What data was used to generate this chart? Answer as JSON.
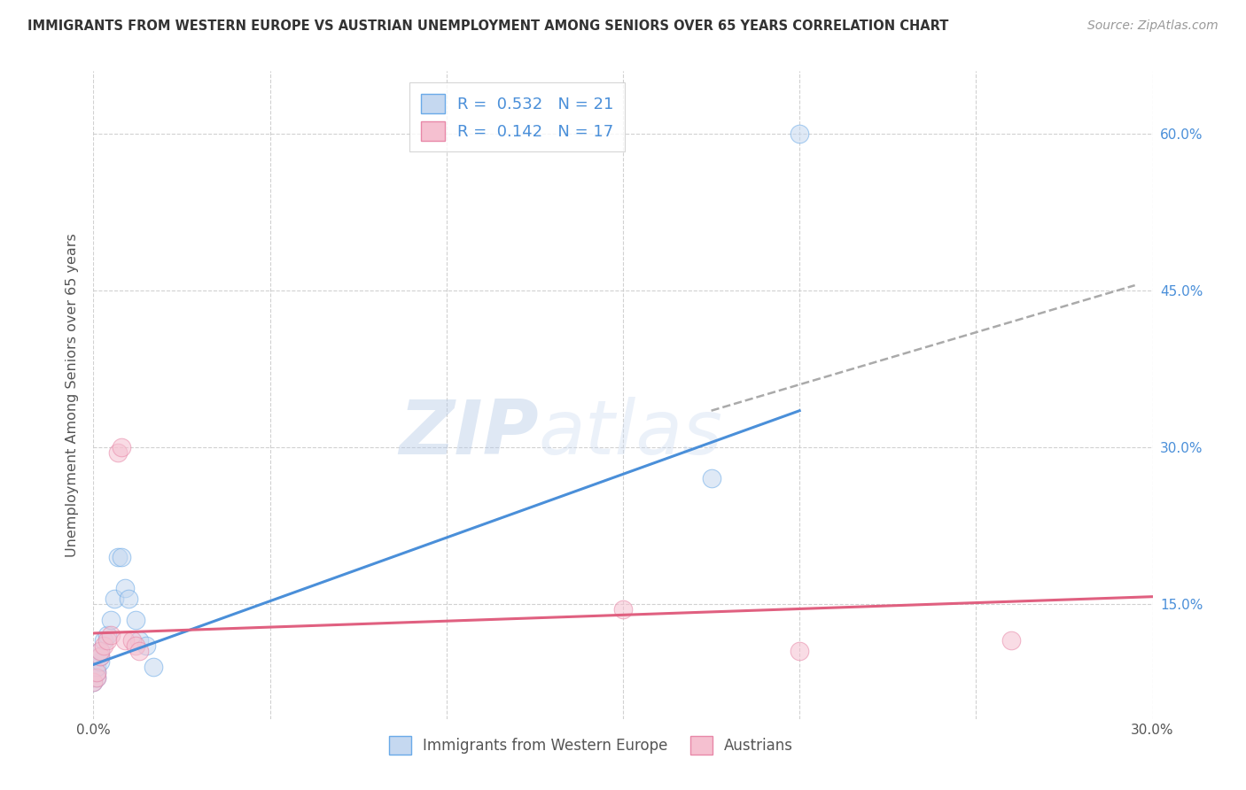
{
  "title": "IMMIGRANTS FROM WESTERN EUROPE VS AUSTRIAN UNEMPLOYMENT AMONG SENIORS OVER 65 YEARS CORRELATION CHART",
  "source": "Source: ZipAtlas.com",
  "ylabel": "Unemployment Among Seniors over 65 years",
  "right_yticks": [
    "60.0%",
    "45.0%",
    "30.0%",
    "15.0%"
  ],
  "right_ytick_vals": [
    0.6,
    0.45,
    0.3,
    0.15
  ],
  "blue_R": "0.532",
  "blue_N": "21",
  "pink_R": "0.142",
  "pink_N": "17",
  "blue_fill_color": "#c5d8f0",
  "pink_fill_color": "#f5c0d0",
  "blue_edge_color": "#6aaae8",
  "pink_edge_color": "#e888a8",
  "blue_line_color": "#4a8fd9",
  "pink_line_color": "#e06080",
  "dashed_line_color": "#aaaaaa",
  "watermark_text": "ZIPatlas",
  "watermark_color": "#d0dff5",
  "xlim": [
    0.0,
    0.3
  ],
  "ylim": [
    0.04,
    0.66
  ],
  "blue_scatter_x": [
    0.0,
    0.001,
    0.001,
    0.001,
    0.002,
    0.002,
    0.002,
    0.003,
    0.004,
    0.005,
    0.006,
    0.007,
    0.008,
    0.009,
    0.01,
    0.012,
    0.013,
    0.015,
    0.017,
    0.175,
    0.2
  ],
  "blue_scatter_y": [
    0.075,
    0.08,
    0.085,
    0.09,
    0.095,
    0.1,
    0.105,
    0.115,
    0.12,
    0.135,
    0.155,
    0.195,
    0.195,
    0.165,
    0.155,
    0.135,
    0.115,
    0.11,
    0.09,
    0.27,
    0.6
  ],
  "pink_scatter_x": [
    0.0,
    0.001,
    0.001,
    0.002,
    0.002,
    0.003,
    0.004,
    0.005,
    0.007,
    0.008,
    0.009,
    0.011,
    0.012,
    0.013,
    0.15,
    0.2,
    0.26
  ],
  "pink_scatter_y": [
    0.075,
    0.08,
    0.085,
    0.1,
    0.105,
    0.11,
    0.115,
    0.12,
    0.295,
    0.3,
    0.115,
    0.115,
    0.11,
    0.105,
    0.145,
    0.105,
    0.115
  ],
  "blue_line_x": [
    0.0,
    0.2
  ],
  "blue_line_y": [
    0.092,
    0.335
  ],
  "pink_line_x": [
    0.0,
    0.3
  ],
  "pink_line_y": [
    0.122,
    0.157
  ],
  "dashed_line_x": [
    0.175,
    0.295
  ],
  "dashed_line_y": [
    0.335,
    0.455
  ],
  "scatter_size": 220,
  "scatter_alpha": 0.55,
  "background_color": "#ffffff",
  "grid_color": "#cccccc",
  "legend_blue_label": "R =  0.532   N = 21",
  "legend_pink_label": "R =  0.142   N = 17",
  "bottom_label_blue": "Immigrants from Western Europe",
  "bottom_label_pink": "Austrians"
}
